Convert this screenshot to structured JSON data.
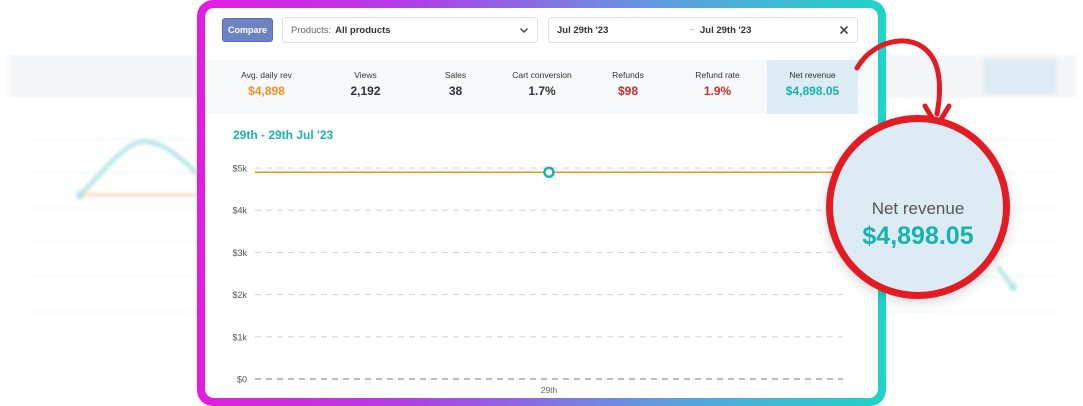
{
  "toolbar": {
    "compare_label": "Compare",
    "products_label": "Products:",
    "products_value": "All products",
    "date_start": "Jul 29th '23",
    "date_separator": "–",
    "date_end": "Jul 29th '23"
  },
  "stats": [
    {
      "title": "Avg. daily rev",
      "value": "$4,898",
      "color": "#f0901e"
    },
    {
      "title": "Views",
      "value": "2,192",
      "color": "#333333"
    },
    {
      "title": "Sales",
      "value": "38",
      "color": "#333333"
    },
    {
      "title": "Cart conversion",
      "value": "1.7%",
      "color": "#333333"
    },
    {
      "title": "Refunds",
      "value": "$98",
      "color": "#d42b2b"
    },
    {
      "title": "Refund rate",
      "value": "1.9%",
      "color": "#d42b2b"
    },
    {
      "title": "Net revenue",
      "value": "$4,898.05",
      "color": "#17b3b0",
      "selected": true
    }
  ],
  "chart_title": "29th - 29th Jul '23",
  "chart_data": {
    "type": "line",
    "title": "29th - 29th Jul '23",
    "categories": [
      "29th"
    ],
    "series": [
      {
        "values": [
          4898.05
        ],
        "color": "#17b3b0"
      },
      {
        "values": [
          4898
        ],
        "color": "#f0901e"
      }
    ],
    "y_ticks": [
      "$0",
      "$1k",
      "$2k",
      "$3k",
      "$4k",
      "$5k"
    ],
    "ylim": [
      0,
      5000
    ],
    "grid": true
  },
  "callout": {
    "title": "Net revenue",
    "value": "$4,898.05"
  },
  "colors": {
    "accent": "#17b3b0",
    "average_line": "#f0901e",
    "callout_ring": "#e31b23"
  },
  "icons": [
    "chevron-down-icon",
    "close-icon",
    "curved-arrow-icon"
  ]
}
